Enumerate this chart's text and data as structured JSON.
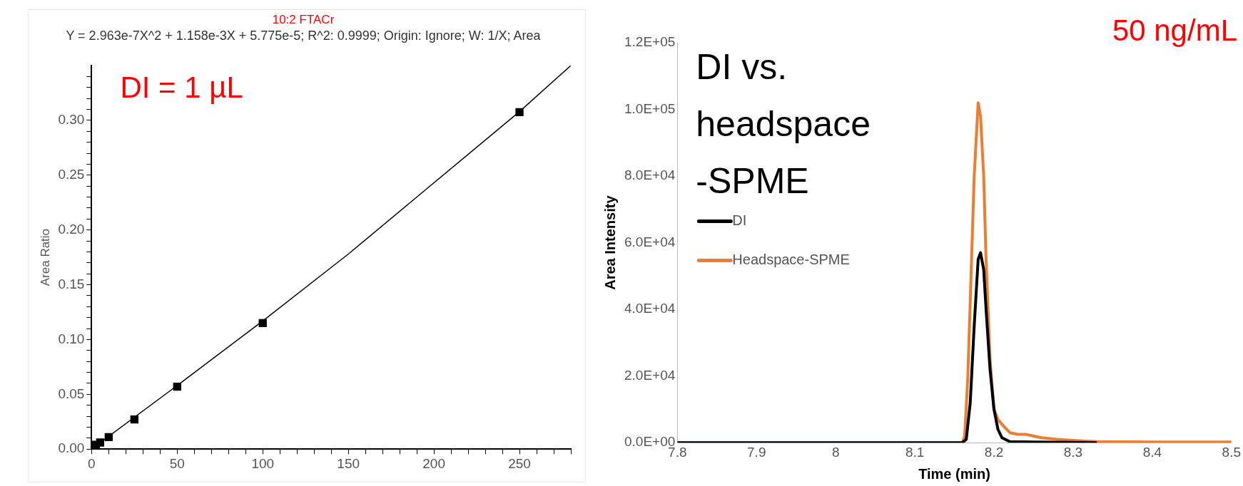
{
  "chart_data": [
    {
      "type": "scatter",
      "title": "10:2 FTACr",
      "subtitle": "Y = 2.963e-7X^2 + 1.158e-3X + 5.775e-5; R^2: 0.9999; Origin: Ignore; W: 1/X; Area",
      "ylabel": "Area Ratio",
      "annotations": [
        "DI = 1 µL"
      ],
      "xlim": [
        0,
        280
      ],
      "ylim": [
        0,
        0.35
      ],
      "xticks": [
        0,
        {
          "value": 10,
          "label": null
        },
        {
          "value": 20,
          "label": null
        },
        {
          "value": 30,
          "label": null
        },
        {
          "value": 40,
          "label": null
        },
        50,
        {
          "value": 60,
          "label": null
        },
        {
          "value": 70,
          "label": null
        },
        {
          "value": 80,
          "label": null
        },
        {
          "value": 90,
          "label": null
        },
        100,
        {
          "value": 110,
          "label": null
        },
        {
          "value": 120,
          "label": null
        },
        {
          "value": 130,
          "label": null
        },
        {
          "value": 140,
          "label": null
        },
        150,
        {
          "value": 160,
          "label": null
        },
        {
          "value": 170,
          "label": null
        },
        {
          "value": 180,
          "label": null
        },
        {
          "value": 190,
          "label": null
        },
        200,
        {
          "value": 210,
          "label": null
        },
        {
          "value": 220,
          "label": null
        },
        {
          "value": 230,
          "label": null
        },
        {
          "value": 240,
          "label": null
        },
        250,
        {
          "value": 260,
          "label": null
        },
        {
          "value": 270,
          "label": null
        },
        {
          "value": 280,
          "label": null
        }
      ],
      "yticks": [
        {
          "value": 0,
          "label": "0.00"
        },
        {
          "value": 0.01,
          "label": null
        },
        {
          "value": 0.02,
          "label": null
        },
        {
          "value": 0.03,
          "label": null
        },
        {
          "value": 0.04,
          "label": null
        },
        {
          "value": 0.05,
          "label": "0.05"
        },
        {
          "value": 0.06,
          "label": null
        },
        {
          "value": 0.07,
          "label": null
        },
        {
          "value": 0.08,
          "label": null
        },
        {
          "value": 0.09,
          "label": null
        },
        {
          "value": 0.1,
          "label": "0.10"
        },
        {
          "value": 0.11,
          "label": null
        },
        {
          "value": 0.12,
          "label": null
        },
        {
          "value": 0.13,
          "label": null
        },
        {
          "value": 0.14,
          "label": null
        },
        {
          "value": 0.15,
          "label": "0.15"
        },
        {
          "value": 0.16,
          "label": null
        },
        {
          "value": 0.17,
          "label": null
        },
        {
          "value": 0.18,
          "label": null
        },
        {
          "value": 0.19,
          "label": null
        },
        {
          "value": 0.2,
          "label": "0.20"
        },
        {
          "value": 0.21,
          "label": null
        },
        {
          "value": 0.22,
          "label": null
        },
        {
          "value": 0.23,
          "label": null
        },
        {
          "value": 0.24,
          "label": null
        },
        {
          "value": 0.25,
          "label": "0.25"
        },
        {
          "value": 0.26,
          "label": null
        },
        {
          "value": 0.27,
          "label": null
        },
        {
          "value": 0.28,
          "label": null
        },
        {
          "value": 0.29,
          "label": null
        },
        {
          "value": 0.3,
          "label": "0.30"
        },
        {
          "value": 0.31,
          "label": null
        },
        {
          "value": 0.32,
          "label": null
        },
        {
          "value": 0.33,
          "label": null
        },
        {
          "value": 0.34,
          "label": null
        }
      ],
      "series": [
        {
          "type": "line",
          "marker": "none",
          "color": "#000000",
          "x": [
            0,
            50,
            100,
            150,
            200,
            250,
            280
          ],
          "values": [
            0.0001,
            0.058,
            0.117,
            0.178,
            0.243,
            0.308,
            0.35
          ]
        },
        {
          "marker": "square",
          "color": "#000000",
          "x": [
            2.5,
            5,
            10,
            25,
            50,
            100,
            250
          ],
          "values": [
            0.004,
            0.006,
            0.011,
            0.027,
            0.057,
            0.115,
            0.3075
          ]
        }
      ]
    },
    {
      "type": "line",
      "title": "DI vs. headspace-SPME",
      "xlabel": "Time (min)",
      "ylabel": "Area Intensity",
      "legend": "left",
      "annotations": [
        "50 ng/mL"
      ],
      "xlim": [
        7.8,
        8.5
      ],
      "ylim": [
        0,
        120000
      ],
      "xticks": [
        7.8,
        7.9,
        8,
        8.1,
        8.2,
        8.3,
        8.4,
        8.5
      ],
      "yticks": [
        {
          "value": 0,
          "label": "0.0E+00"
        },
        {
          "value": 20000,
          "label": "2.0E+04"
        },
        {
          "value": 40000,
          "label": "4.0E+04"
        },
        {
          "value": 60000,
          "label": "6.0E+04"
        },
        {
          "value": 80000,
          "label": "8.0E+04"
        },
        {
          "value": 100000,
          "label": "1.0E+05"
        },
        {
          "value": 120000,
          "label": "1.2E+05"
        }
      ],
      "series": [
        {
          "name": "DI",
          "color": "#000000",
          "x": [
            7.8,
            8.16,
            8.165,
            8.17,
            8.175,
            8.18,
            8.183,
            8.187,
            8.19,
            8.195,
            8.2,
            8.205,
            8.21,
            8.22,
            8.25,
            8.3,
            8.33
          ],
          "values": [
            0,
            0,
            1000,
            12000,
            35000,
            55000,
            57000,
            52000,
            40000,
            22000,
            10000,
            4000,
            1500,
            300,
            200,
            100,
            0
          ]
        },
        {
          "name": "Headspace-SPME",
          "color": "#ed7d31",
          "x": [
            7.8,
            8.16,
            8.163,
            8.167,
            8.171,
            8.175,
            8.18,
            8.183,
            8.187,
            8.19,
            8.195,
            8.2,
            8.205,
            8.21,
            8.22,
            8.23,
            8.24,
            8.26,
            8.28,
            8.3,
            8.33,
            8.4,
            8.5
          ],
          "values": [
            0,
            0,
            2000,
            20000,
            50000,
            80000,
            102000,
            98000,
            80000,
            55000,
            25000,
            10000,
            7000,
            5500,
            3000,
            2500,
            2500,
            1500,
            1000,
            700,
            300,
            200,
            200
          ]
        }
      ]
    }
  ]
}
